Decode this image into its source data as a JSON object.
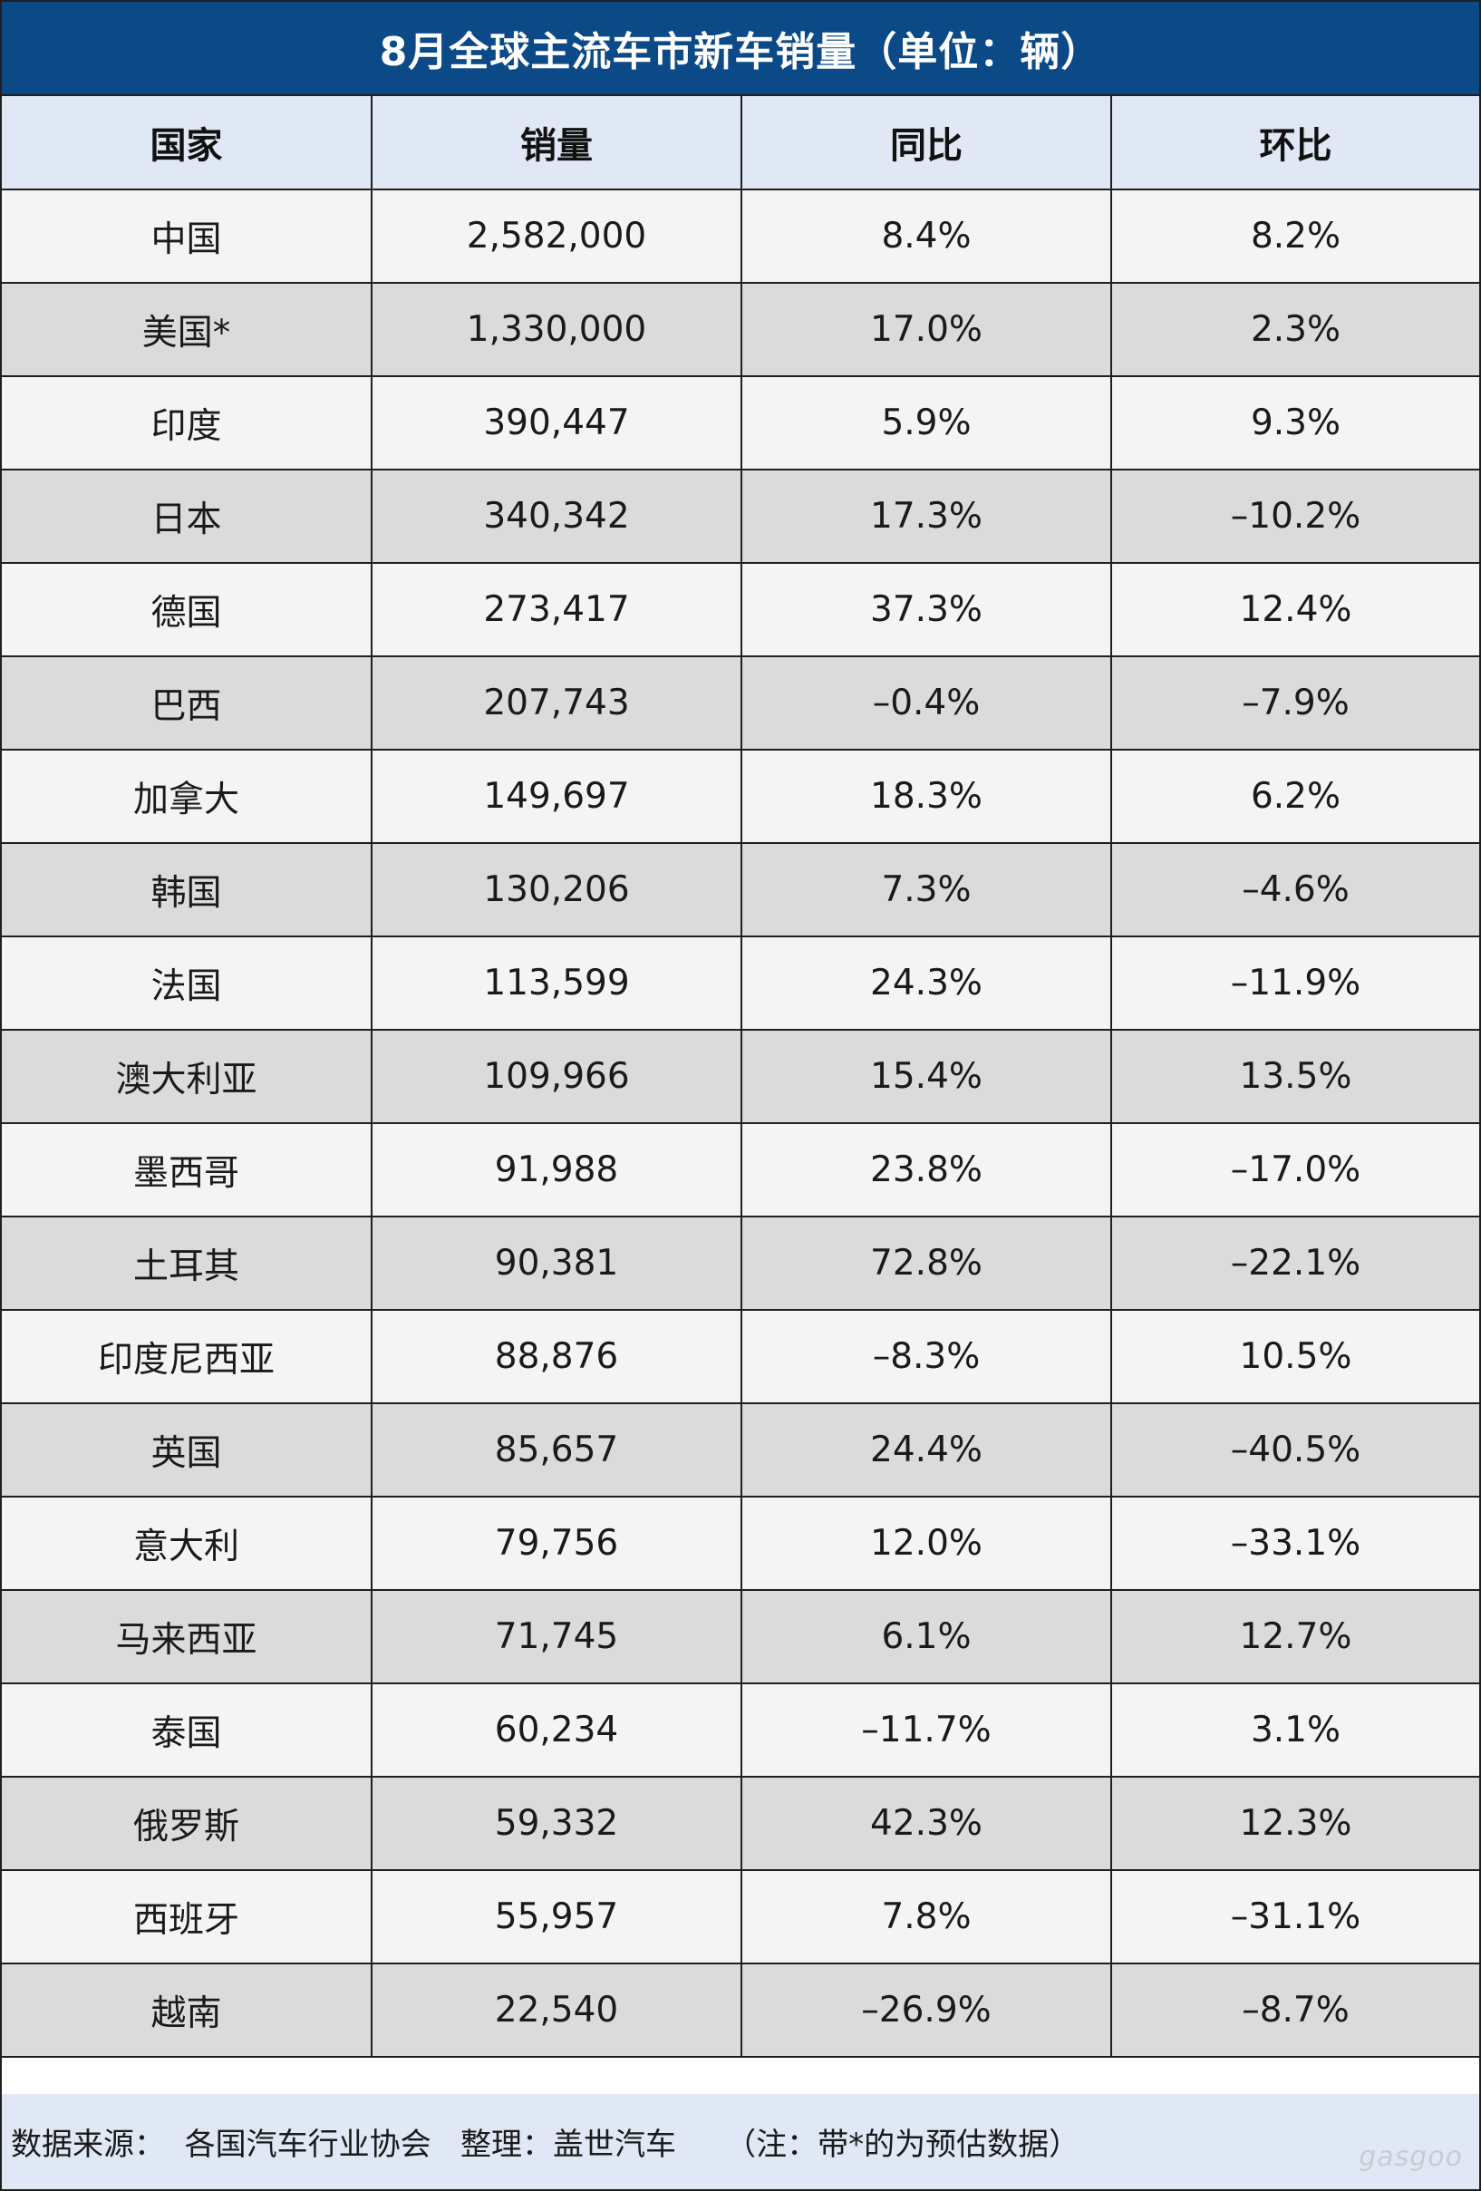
{
  "title": "8月全球主流车市新车销量（单位：辆）",
  "headers": {
    "country": "国家",
    "sales": "销量",
    "yoy": "同比",
    "mom": "环比"
  },
  "colors": {
    "title_bg": "#0b4a86",
    "header_bg": "#dfe8f4",
    "positive": "#e02020",
    "negative": "#1aa54a",
    "row_light": "#f4f4f4",
    "row_dark": "#dbdbdb"
  },
  "footer": "数据来源：  各国汽车行业协会   整理：盖世汽车     （注：带*的为预估数据）",
  "watermark": "gasgoo",
  "chart_data": {
    "type": "table",
    "title": "8月全球主流车市新车销量（单位：辆）",
    "columns": [
      "国家",
      "销量",
      "同比",
      "环比"
    ],
    "rows": [
      {
        "country": "中国",
        "sales": "2,582,000",
        "yoy": "8.4%",
        "mom": "8.2%"
      },
      {
        "country": "美国*",
        "sales": "1,330,000",
        "yoy": "17.0%",
        "mom": "2.3%"
      },
      {
        "country": "印度",
        "sales": "390,447",
        "yoy": "5.9%",
        "mom": "9.3%"
      },
      {
        "country": "日本",
        "sales": "340,342",
        "yoy": "17.3%",
        "mom": "–10.2%"
      },
      {
        "country": "德国",
        "sales": "273,417",
        "yoy": "37.3%",
        "mom": "12.4%"
      },
      {
        "country": "巴西",
        "sales": "207,743",
        "yoy": "–0.4%",
        "mom": "–7.9%"
      },
      {
        "country": "加拿大",
        "sales": "149,697",
        "yoy": "18.3%",
        "mom": "6.2%"
      },
      {
        "country": "韩国",
        "sales": "130,206",
        "yoy": "7.3%",
        "mom": "–4.6%"
      },
      {
        "country": "法国",
        "sales": "113,599",
        "yoy": "24.3%",
        "mom": "–11.9%"
      },
      {
        "country": "澳大利亚",
        "sales": "109,966",
        "yoy": "15.4%",
        "mom": "13.5%"
      },
      {
        "country": "墨西哥",
        "sales": "91,988",
        "yoy": "23.8%",
        "mom": "–17.0%"
      },
      {
        "country": "土耳其",
        "sales": "90,381",
        "yoy": "72.8%",
        "mom": "–22.1%"
      },
      {
        "country": "印度尼西亚",
        "sales": "88,876",
        "yoy": "–8.3%",
        "mom": "10.5%"
      },
      {
        "country": "英国",
        "sales": "85,657",
        "yoy": "24.4%",
        "mom": "–40.5%"
      },
      {
        "country": "意大利",
        "sales": "79,756",
        "yoy": "12.0%",
        "mom": "–33.1%"
      },
      {
        "country": "马来西亚",
        "sales": "71,745",
        "yoy": "6.1%",
        "mom": "12.7%"
      },
      {
        "country": "泰国",
        "sales": "60,234",
        "yoy": "–11.7%",
        "mom": "3.1%"
      },
      {
        "country": "俄罗斯",
        "sales": "59,332",
        "yoy": "42.3%",
        "mom": "12.3%"
      },
      {
        "country": "西班牙",
        "sales": "55,957",
        "yoy": "7.8%",
        "mom": "–31.1%"
      },
      {
        "country": "越南",
        "sales": "22,540",
        "yoy": "–26.9%",
        "mom": "–8.7%"
      }
    ]
  }
}
